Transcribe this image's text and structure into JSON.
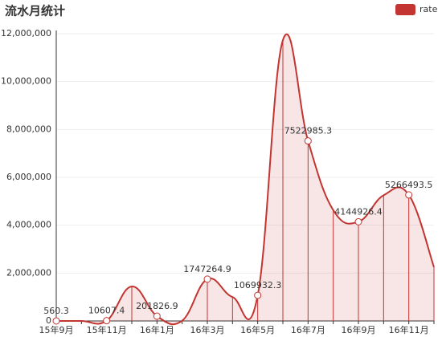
{
  "chart_data": {
    "type": "line",
    "title": "流水月统计",
    "categories": [
      "15年9月",
      null,
      "15年11月",
      null,
      "16年1月",
      null,
      "16年3月",
      null,
      "16年5月",
      null,
      "16年7月",
      null,
      "16年9月",
      null,
      "16年11月",
      null
    ],
    "series": [
      {
        "name": "rate",
        "color": "#c23531",
        "values": [
          560.3,
          0,
          10607.4,
          1440000,
          201826.9,
          10000,
          1747264.9,
          1000000,
          1069932.3,
          11730000,
          7522985.3,
          4630000,
          4144926.4,
          5250000,
          5266493.5,
          2250000
        ]
      }
    ],
    "ylim": [
      0,
      12000000
    ],
    "yticks": [
      0,
      {
        "value": 2000000,
        "label": "2,000,000"
      },
      {
        "value": 4000000,
        "label": "4,000,000"
      },
      {
        "value": 6000000,
        "label": "6,000,000"
      },
      {
        "value": 8000000,
        "label": "8,000,000"
      },
      {
        "value": 10000000,
        "label": "10,000,000"
      },
      {
        "value": 12000000,
        "label": "12,000,000"
      }
    ],
    "grid": true,
    "legend": "top-right"
  }
}
